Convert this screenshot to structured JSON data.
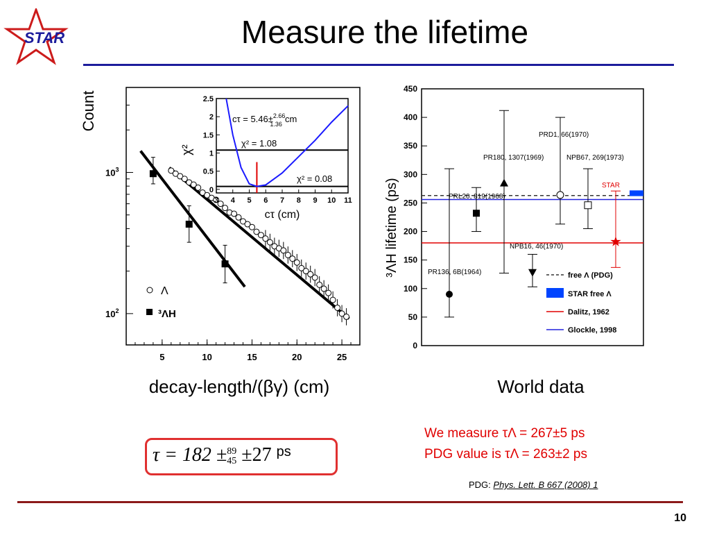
{
  "slide": {
    "title": "Measure the lifetime",
    "page_number": "10",
    "logo_text": "STAR"
  },
  "captions": {
    "left": "decay-length/(βγ) (cm)",
    "right": "World data"
  },
  "formula": {
    "text": "τ = 182 ±",
    "plus": "89",
    "minus": "45",
    "sys": "±27",
    "unit": "ps"
  },
  "results": {
    "line1": "We measure τΛ = 267±5 ps",
    "line2": "PDG value is τΛ = 263±2 ps",
    "pdg_label": "PDG:",
    "pdg_ref": "Phys. Lett. B 667 (2008) 1"
  },
  "colors": {
    "title_rule": "#1c1c9c",
    "bottom_rule": "#8b1a1a",
    "accent_red": "#e00000",
    "curve_blue": "#1a1aff",
    "star_band": "#0044ff"
  },
  "chart_data": [
    {
      "type": "scatter",
      "ylabel": "Count",
      "y_scale": "log",
      "x_ticks": [
        5,
        10,
        15,
        20,
        25
      ],
      "y_tick_labels": [
        "10^2",
        "10^3"
      ],
      "xlim": [
        1,
        27
      ],
      "ylim": [
        60,
        4000
      ],
      "series": [
        {
          "name": "Λ",
          "marker": "open-circle",
          "x": [
            6,
            6.5,
            7,
            7.5,
            8,
            8.5,
            9,
            9.5,
            10,
            10.5,
            11,
            11.5,
            12,
            12.5,
            13,
            13.5,
            14,
            14.5,
            15,
            15.5,
            16,
            16.5,
            17,
            17.5,
            18,
            18.5,
            19,
            19.5,
            20,
            20.5,
            21,
            21.5,
            22,
            22.5,
            23,
            23.5,
            24,
            24.5,
            25,
            25.5
          ],
          "y": [
            1030,
            980,
            940,
            900,
            850,
            820,
            780,
            720,
            690,
            660,
            640,
            600,
            560,
            520,
            510,
            480,
            450,
            430,
            410,
            380,
            360,
            340,
            320,
            300,
            290,
            280,
            260,
            245,
            230,
            210,
            200,
            190,
            180,
            160,
            150,
            140,
            125,
            110,
            100,
            95
          ]
        },
        {
          "name": "³ΛH",
          "marker": "filled-square",
          "x": [
            4,
            8,
            12
          ],
          "y": [
            980,
            430,
            225
          ],
          "yerr": [
            [
              300,
              150
            ],
            [
              150,
              110
            ],
            [
              80,
              60
            ]
          ]
        }
      ],
      "inset": {
        "type": "line",
        "xlabel": "cτ (cm)",
        "ylabel": "χ²",
        "x_ticks": [
          3,
          4,
          5,
          6,
          7,
          8,
          9,
          10,
          11
        ],
        "y_ticks": [
          0,
          0.5,
          1,
          1.5,
          2,
          2.5
        ],
        "xlim": [
          3,
          11
        ],
        "ylim": [
          -0.1,
          2.5
        ],
        "curve_x": [
          3.6,
          4.0,
          4.5,
          5.0,
          5.46,
          6.0,
          7.0,
          8.0,
          9.0,
          10.0,
          11.0
        ],
        "curve_y": [
          2.6,
          1.5,
          0.6,
          0.15,
          0.08,
          0.12,
          0.45,
          0.9,
          1.35,
          1.85,
          2.3
        ],
        "labels": {
          "ct": "cτ = 5.46±",
          "ct_plus": "2.66",
          "ct_minus": "1.36",
          "ct_unit": "cm",
          "chi_min_plus1": "χ² = 1.08",
          "chi_min": "χ² = 0.08"
        },
        "hlines": [
          1.08,
          0.08
        ],
        "vline": 5.46
      }
    },
    {
      "type": "scatter",
      "ylabel": "³ΛH lifetime (ps)",
      "ylim": [
        0,
        450
      ],
      "y_ticks": [
        0,
        50,
        100,
        150,
        200,
        250,
        300,
        350,
        400,
        450
      ],
      "points": [
        {
          "label": "PR136, 6B(1964)",
          "value": 90,
          "err_low": 50,
          "err_high": 310,
          "marker": "filled-circle"
        },
        {
          "label": "PRL20, 819(1968)",
          "value": 232,
          "err_low": 200,
          "err_high": 277,
          "marker": "filled-square"
        },
        {
          "label": "PR180, 1307(1969)",
          "value": 285,
          "err_low": 127,
          "err_high": 412,
          "marker": "filled-triangle-up"
        },
        {
          "label": "NPB16, 46(1970)",
          "value": 128,
          "err_low": 103,
          "err_high": 160,
          "marker": "filled-triangle-down"
        },
        {
          "label": "PRD1, 66(1970)",
          "value": 264,
          "err_low": 213,
          "err_high": 400,
          "marker": "open-circle"
        },
        {
          "label": "NPB67, 269(1973)",
          "value": 246,
          "err_low": 205,
          "err_high": 310,
          "marker": "open-square"
        },
        {
          "label": "STAR",
          "value": 182,
          "err_low": 137,
          "err_high": 271,
          "marker": "red-star"
        }
      ],
      "reference_lines": [
        {
          "name": "free Λ (PDG)",
          "value": 263,
          "style": "dashed",
          "color": "#333333"
        },
        {
          "name": "STAR free Λ",
          "value": 267,
          "style": "band",
          "color": "#0044ff"
        },
        {
          "name": "Dalitz, 1962",
          "value": 180,
          "style": "solid",
          "color": "#e00000"
        },
        {
          "name": "Glockle, 1998",
          "value": 256,
          "style": "solid",
          "color": "#2222dd"
        }
      ]
    }
  ]
}
